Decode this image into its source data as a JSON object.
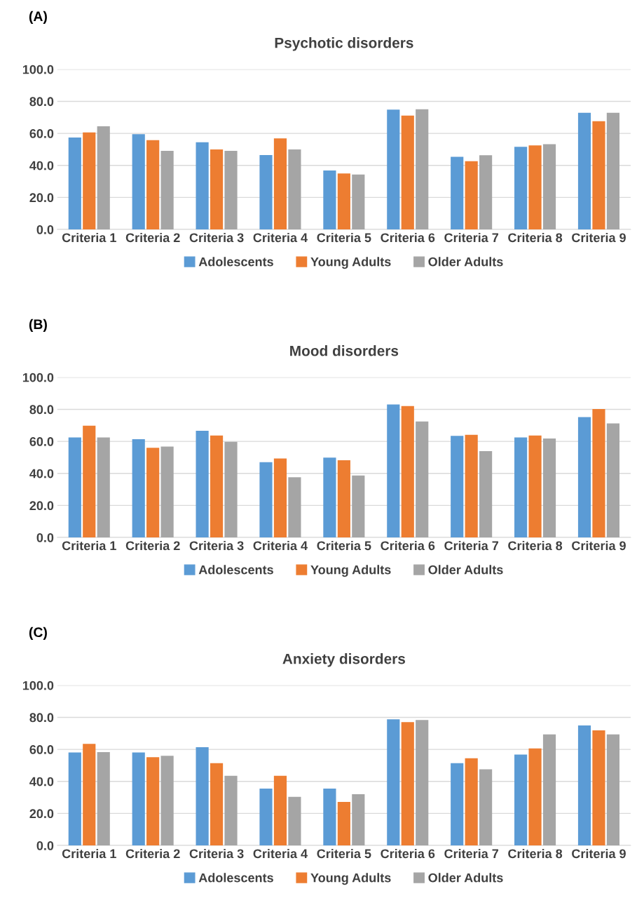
{
  "chart_data": [
    {
      "type": "bar",
      "title": "Psychotic disorders",
      "annotations": [
        "(A)"
      ],
      "categories": [
        "Criteria 1",
        "Criteria 2",
        "Criteria 3",
        "Criteria 4",
        "Criteria 5",
        "Criteria 6",
        "Criteria 7",
        "Criteria 8",
        "Criteria 9"
      ],
      "series": [
        {
          "name": "Adolescents",
          "color": "#5b9bd5",
          "values": [
            57.4,
            59.5,
            54.4,
            46.5,
            36.8,
            74.8,
            45.4,
            51.6,
            72.9
          ]
        },
        {
          "name": "Young Adults",
          "color": "#ed7d31",
          "values": [
            60.6,
            55.8,
            50.0,
            56.9,
            35.0,
            71.1,
            42.6,
            52.5,
            67.6
          ]
        },
        {
          "name": "Older Adults",
          "color": "#a5a5a5",
          "values": [
            64.4,
            49.1,
            49.1,
            50.0,
            34.3,
            75.0,
            46.3,
            53.2,
            72.9
          ]
        }
      ],
      "ylim": [
        0,
        100
      ],
      "yticks": [
        {
          "value": 0,
          "label": "0.0"
        },
        {
          "value": 20,
          "label": "20.0"
        },
        {
          "value": 40,
          "label": "40.0"
        },
        {
          "value": 60,
          "label": "60.0"
        },
        {
          "value": 80,
          "label": "80.0"
        },
        {
          "value": 100,
          "label": "100.0"
        }
      ],
      "grid": "y",
      "legend": "bottom"
    },
    {
      "type": "bar",
      "title": "Mood disorders",
      "annotations": [
        "(B)"
      ],
      "categories": [
        "Criteria 1",
        "Criteria 2",
        "Criteria 3",
        "Criteria 4",
        "Criteria 5",
        "Criteria 6",
        "Criteria 7",
        "Criteria 8",
        "Criteria 9"
      ],
      "series": [
        {
          "name": "Adolescents",
          "color": "#5b9bd5",
          "values": [
            62.4,
            61.3,
            66.6,
            47.0,
            49.8,
            83.0,
            63.4,
            62.4,
            75.1
          ]
        },
        {
          "name": "Young Adults",
          "color": "#ed7d31",
          "values": [
            69.8,
            56.0,
            63.6,
            49.3,
            48.2,
            82.0,
            64.1,
            63.6,
            80.2
          ]
        },
        {
          "name": "Older Adults",
          "color": "#a5a5a5",
          "values": [
            62.4,
            56.7,
            59.7,
            37.6,
            38.7,
            72.4,
            53.9,
            61.8,
            71.2
          ]
        }
      ],
      "ylim": [
        0,
        100
      ],
      "yticks": [
        {
          "value": 0,
          "label": "0.0"
        },
        {
          "value": 20,
          "label": "20.0"
        },
        {
          "value": 40,
          "label": "40.0"
        },
        {
          "value": 60,
          "label": "60.0"
        },
        {
          "value": 80,
          "label": "80.0"
        },
        {
          "value": 100,
          "label": "100.0"
        }
      ],
      "grid": "y",
      "legend": "bottom"
    },
    {
      "type": "bar",
      "title": "Anxiety disorders",
      "annotations": [
        "(C)"
      ],
      "categories": [
        "Criteria 1",
        "Criteria 2",
        "Criteria 3",
        "Criteria 4",
        "Criteria 5",
        "Criteria 6",
        "Criteria 7",
        "Criteria 8",
        "Criteria 9"
      ],
      "series": [
        {
          "name": "Adolescents",
          "color": "#5b9bd5",
          "values": [
            58.1,
            58.1,
            61.3,
            35.5,
            35.5,
            78.8,
            51.4,
            56.7,
            74.9
          ]
        },
        {
          "name": "Young Adults",
          "color": "#ed7d31",
          "values": [
            63.4,
            55.1,
            51.4,
            43.5,
            27.2,
            77.0,
            54.4,
            60.6,
            71.9
          ]
        },
        {
          "name": "Older Adults",
          "color": "#a5a5a5",
          "values": [
            58.3,
            56.0,
            43.5,
            30.4,
            32.0,
            78.3,
            47.5,
            69.4,
            69.4
          ]
        }
      ],
      "ylim": [
        0,
        100
      ],
      "yticks": [
        {
          "value": 0,
          "label": "0.0"
        },
        {
          "value": 20,
          "label": "20.0"
        },
        {
          "value": 40,
          "label": "40.0"
        },
        {
          "value": 60,
          "label": "60.0"
        },
        {
          "value": 80,
          "label": "80.0"
        },
        {
          "value": 100,
          "label": "100.0"
        }
      ],
      "grid": "y",
      "legend": "bottom"
    }
  ]
}
